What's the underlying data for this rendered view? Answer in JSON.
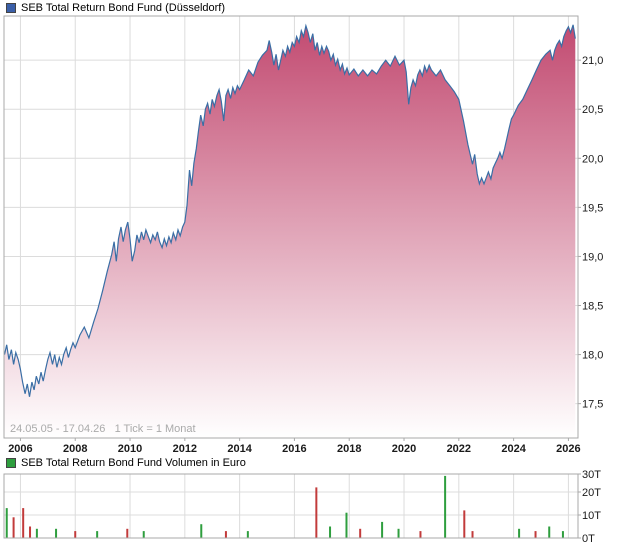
{
  "price_header": {
    "label": "SEB Total Return Bond Fund (Düsseldorf)",
    "bullet_color": "#3a5fa8"
  },
  "volume_header": {
    "label": "SEB Total Return Bond Fund Volumen in Euro",
    "bullet_color": "#2e9e3e"
  },
  "colors": {
    "line": "#3a6ea5",
    "area_top": "#c1476e",
    "area_bottom": "#ffffff",
    "grid": "#dcdcdc",
    "border": "#a9a9a9",
    "tick_text": "#1a1a1a",
    "info_text": "#aaaaaa",
    "bar_green": "#2e9e3e",
    "bar_red": "#c23b3b"
  },
  "chart_data": [
    {
      "type": "area",
      "title": "SEB Total Return Bond Fund (Düsseldorf)",
      "info_text": "24.05.05 - 17.04.26   1 Tick = 1 Monat",
      "x_range": [
        2005.4,
        2026.35
      ],
      "y_range": [
        17.15,
        21.45
      ],
      "x_ticks": {
        "values": [
          2006,
          2008,
          2010,
          2012,
          2014,
          2016,
          2018,
          2020,
          2022,
          2024,
          2026
        ],
        "labels": [
          "2006",
          "2008",
          "2010",
          "2012",
          "2014",
          "2016",
          "2018",
          "2020",
          "2022",
          "2024",
          "2026"
        ]
      },
      "y_ticks": {
        "values": [
          17.5,
          18.0,
          18.5,
          19.0,
          19.5,
          20.0,
          20.5,
          21.0
        ],
        "labels": [
          "17,5",
          "18,0",
          "18,5",
          "19,0",
          "19,5",
          "20,0",
          "20,5",
          "21,0"
        ]
      },
      "points": [
        [
          2005.42,
          18.0
        ],
        [
          2005.5,
          18.1
        ],
        [
          2005.58,
          17.95
        ],
        [
          2005.67,
          18.05
        ],
        [
          2005.75,
          17.9
        ],
        [
          2005.83,
          18.02
        ],
        [
          2005.92,
          17.95
        ],
        [
          2006.0,
          17.85
        ],
        [
          2006.08,
          17.72
        ],
        [
          2006.17,
          17.6
        ],
        [
          2006.25,
          17.7
        ],
        [
          2006.33,
          17.57
        ],
        [
          2006.42,
          17.72
        ],
        [
          2006.5,
          17.64
        ],
        [
          2006.58,
          17.78
        ],
        [
          2006.67,
          17.7
        ],
        [
          2006.75,
          17.82
        ],
        [
          2006.83,
          17.73
        ],
        [
          2006.92,
          17.85
        ],
        [
          2007.0,
          17.95
        ],
        [
          2007.08,
          18.02
        ],
        [
          2007.17,
          17.9
        ],
        [
          2007.25,
          18.0
        ],
        [
          2007.33,
          17.87
        ],
        [
          2007.42,
          17.97
        ],
        [
          2007.5,
          17.9
        ],
        [
          2007.58,
          18.0
        ],
        [
          2007.67,
          18.07
        ],
        [
          2007.75,
          17.97
        ],
        [
          2007.83,
          18.05
        ],
        [
          2007.92,
          18.12
        ],
        [
          2008.0,
          18.07
        ],
        [
          2008.17,
          18.2
        ],
        [
          2008.33,
          18.28
        ],
        [
          2008.5,
          18.17
        ],
        [
          2008.67,
          18.33
        ],
        [
          2008.83,
          18.47
        ],
        [
          2009.0,
          18.65
        ],
        [
          2009.17,
          18.85
        ],
        [
          2009.33,
          19.02
        ],
        [
          2009.42,
          19.15
        ],
        [
          2009.5,
          18.95
        ],
        [
          2009.58,
          19.18
        ],
        [
          2009.67,
          19.3
        ],
        [
          2009.75,
          19.15
        ],
        [
          2009.83,
          19.27
        ],
        [
          2009.92,
          19.35
        ],
        [
          2010.0,
          19.18
        ],
        [
          2010.08,
          18.95
        ],
        [
          2010.17,
          19.06
        ],
        [
          2010.25,
          19.22
        ],
        [
          2010.33,
          19.14
        ],
        [
          2010.42,
          19.25
        ],
        [
          2010.5,
          19.17
        ],
        [
          2010.58,
          19.27
        ],
        [
          2010.67,
          19.2
        ],
        [
          2010.75,
          19.14
        ],
        [
          2010.83,
          19.22
        ],
        [
          2010.92,
          19.17
        ],
        [
          2011.0,
          19.25
        ],
        [
          2011.08,
          19.15
        ],
        [
          2011.17,
          19.09
        ],
        [
          2011.25,
          19.18
        ],
        [
          2011.33,
          19.11
        ],
        [
          2011.42,
          19.2
        ],
        [
          2011.5,
          19.14
        ],
        [
          2011.58,
          19.24
        ],
        [
          2011.67,
          19.17
        ],
        [
          2011.75,
          19.27
        ],
        [
          2011.83,
          19.21
        ],
        [
          2011.92,
          19.3
        ],
        [
          2012.0,
          19.35
        ],
        [
          2012.08,
          19.52
        ],
        [
          2012.17,
          19.88
        ],
        [
          2012.25,
          19.72
        ],
        [
          2012.33,
          19.95
        ],
        [
          2012.42,
          20.1
        ],
        [
          2012.5,
          20.28
        ],
        [
          2012.58,
          20.44
        ],
        [
          2012.67,
          20.33
        ],
        [
          2012.75,
          20.5
        ],
        [
          2012.83,
          20.56
        ],
        [
          2012.92,
          20.45
        ],
        [
          2013.0,
          20.6
        ],
        [
          2013.08,
          20.53
        ],
        [
          2013.17,
          20.64
        ],
        [
          2013.25,
          20.7
        ],
        [
          2013.33,
          20.58
        ],
        [
          2013.42,
          20.38
        ],
        [
          2013.5,
          20.64
        ],
        [
          2013.58,
          20.7
        ],
        [
          2013.67,
          20.61
        ],
        [
          2013.75,
          20.72
        ],
        [
          2013.83,
          20.66
        ],
        [
          2013.92,
          20.74
        ],
        [
          2014.0,
          20.7
        ],
        [
          2014.17,
          20.8
        ],
        [
          2014.33,
          20.9
        ],
        [
          2014.5,
          20.84
        ],
        [
          2014.67,
          20.98
        ],
        [
          2014.83,
          21.05
        ],
        [
          2015.0,
          21.1
        ],
        [
          2015.08,
          21.2
        ],
        [
          2015.17,
          21.08
        ],
        [
          2015.25,
          20.95
        ],
        [
          2015.33,
          21.06
        ],
        [
          2015.42,
          20.9
        ],
        [
          2015.5,
          21.0
        ],
        [
          2015.58,
          21.1
        ],
        [
          2015.67,
          21.04
        ],
        [
          2015.75,
          21.14
        ],
        [
          2015.83,
          21.08
        ],
        [
          2015.92,
          21.18
        ],
        [
          2016.0,
          21.14
        ],
        [
          2016.08,
          21.24
        ],
        [
          2016.17,
          21.18
        ],
        [
          2016.25,
          21.3
        ],
        [
          2016.33,
          21.24
        ],
        [
          2016.42,
          21.35
        ],
        [
          2016.5,
          21.28
        ],
        [
          2016.58,
          21.18
        ],
        [
          2016.67,
          21.27
        ],
        [
          2016.75,
          21.1
        ],
        [
          2016.83,
          21.18
        ],
        [
          2016.92,
          21.05
        ],
        [
          2017.0,
          21.14
        ],
        [
          2017.08,
          21.07
        ],
        [
          2017.17,
          21.14
        ],
        [
          2017.25,
          21.09
        ],
        [
          2017.33,
          21.0
        ],
        [
          2017.42,
          21.06
        ],
        [
          2017.5,
          20.95
        ],
        [
          2017.58,
          21.01
        ],
        [
          2017.67,
          20.9
        ],
        [
          2017.75,
          20.96
        ],
        [
          2017.83,
          20.86
        ],
        [
          2017.92,
          20.92
        ],
        [
          2018.0,
          20.85
        ],
        [
          2018.17,
          20.91
        ],
        [
          2018.33,
          20.84
        ],
        [
          2018.5,
          20.9
        ],
        [
          2018.67,
          20.84
        ],
        [
          2018.83,
          20.9
        ],
        [
          2019.0,
          20.86
        ],
        [
          2019.17,
          20.94
        ],
        [
          2019.33,
          21.0
        ],
        [
          2019.5,
          20.94
        ],
        [
          2019.67,
          21.04
        ],
        [
          2019.83,
          20.95
        ],
        [
          2020.0,
          21.0
        ],
        [
          2020.08,
          20.88
        ],
        [
          2020.17,
          20.55
        ],
        [
          2020.25,
          20.72
        ],
        [
          2020.33,
          20.8
        ],
        [
          2020.42,
          20.74
        ],
        [
          2020.5,
          20.85
        ],
        [
          2020.58,
          20.9
        ],
        [
          2020.67,
          20.84
        ],
        [
          2020.75,
          20.94
        ],
        [
          2020.83,
          20.88
        ],
        [
          2020.92,
          20.95
        ],
        [
          2021.0,
          20.9
        ],
        [
          2021.17,
          20.84
        ],
        [
          2021.33,
          20.9
        ],
        [
          2021.5,
          20.8
        ],
        [
          2021.67,
          20.74
        ],
        [
          2021.83,
          20.68
        ],
        [
          2022.0,
          20.6
        ],
        [
          2022.17,
          20.38
        ],
        [
          2022.33,
          20.14
        ],
        [
          2022.5,
          19.94
        ],
        [
          2022.58,
          20.04
        ],
        [
          2022.67,
          19.84
        ],
        [
          2022.75,
          19.74
        ],
        [
          2022.83,
          19.8
        ],
        [
          2022.92,
          19.74
        ],
        [
          2023.0,
          19.8
        ],
        [
          2023.08,
          19.86
        ],
        [
          2023.17,
          19.79
        ],
        [
          2023.25,
          19.9
        ],
        [
          2023.33,
          19.95
        ],
        [
          2023.42,
          20.0
        ],
        [
          2023.5,
          20.06
        ],
        [
          2023.58,
          20.0
        ],
        [
          2023.67,
          20.1
        ],
        [
          2023.75,
          20.2
        ],
        [
          2023.83,
          20.3
        ],
        [
          2023.92,
          20.4
        ],
        [
          2024.0,
          20.44
        ],
        [
          2024.17,
          20.54
        ],
        [
          2024.33,
          20.6
        ],
        [
          2024.5,
          20.7
        ],
        [
          2024.67,
          20.8
        ],
        [
          2024.83,
          20.9
        ],
        [
          2025.0,
          21.0
        ],
        [
          2025.17,
          21.06
        ],
        [
          2025.33,
          21.1
        ],
        [
          2025.42,
          21.0
        ],
        [
          2025.5,
          21.1
        ],
        [
          2025.58,
          21.16
        ],
        [
          2025.67,
          21.2
        ],
        [
          2025.75,
          21.14
        ],
        [
          2025.83,
          21.24
        ],
        [
          2025.92,
          21.3
        ],
        [
          2026.0,
          21.34
        ],
        [
          2026.08,
          21.28
        ],
        [
          2026.17,
          21.36
        ],
        [
          2026.25,
          21.22
        ]
      ]
    },
    {
      "type": "bar",
      "title": "SEB Total Return Bond Fund Volumen in Euro",
      "x_range": [
        2005.4,
        2026.35
      ],
      "y_range": [
        0,
        30
      ],
      "x_ticks": {
        "values": [
          2006,
          2008,
          2010,
          2012,
          2014,
          2016,
          2018,
          2020,
          2022,
          2024,
          2026
        ],
        "labels": []
      },
      "y_ticks": {
        "values": [
          0,
          10,
          20,
          30
        ],
        "labels": [
          "0T",
          "10T",
          "20T",
          "30T"
        ]
      },
      "bars": [
        [
          2005.5,
          13,
          "green"
        ],
        [
          2005.75,
          9,
          "red"
        ],
        [
          2006.1,
          13,
          "red"
        ],
        [
          2006.35,
          5,
          "red"
        ],
        [
          2006.6,
          4,
          "green"
        ],
        [
          2007.3,
          4,
          "green"
        ],
        [
          2008.0,
          3,
          "red"
        ],
        [
          2008.8,
          3,
          "green"
        ],
        [
          2009.9,
          4,
          "red"
        ],
        [
          2010.5,
          3,
          "green"
        ],
        [
          2012.6,
          6,
          "green"
        ],
        [
          2013.5,
          3,
          "red"
        ],
        [
          2014.3,
          3,
          "green"
        ],
        [
          2016.8,
          22,
          "red"
        ],
        [
          2017.3,
          5,
          "green"
        ],
        [
          2017.9,
          11,
          "green"
        ],
        [
          2018.4,
          4,
          "red"
        ],
        [
          2019.2,
          7,
          "green"
        ],
        [
          2019.8,
          4,
          "green"
        ],
        [
          2020.6,
          3,
          "red"
        ],
        [
          2021.5,
          27,
          "green"
        ],
        [
          2022.2,
          12,
          "red"
        ],
        [
          2022.5,
          3,
          "red"
        ],
        [
          2024.2,
          4,
          "green"
        ],
        [
          2024.8,
          3,
          "red"
        ],
        [
          2025.3,
          5,
          "green"
        ],
        [
          2025.8,
          3,
          "green"
        ]
      ]
    }
  ]
}
